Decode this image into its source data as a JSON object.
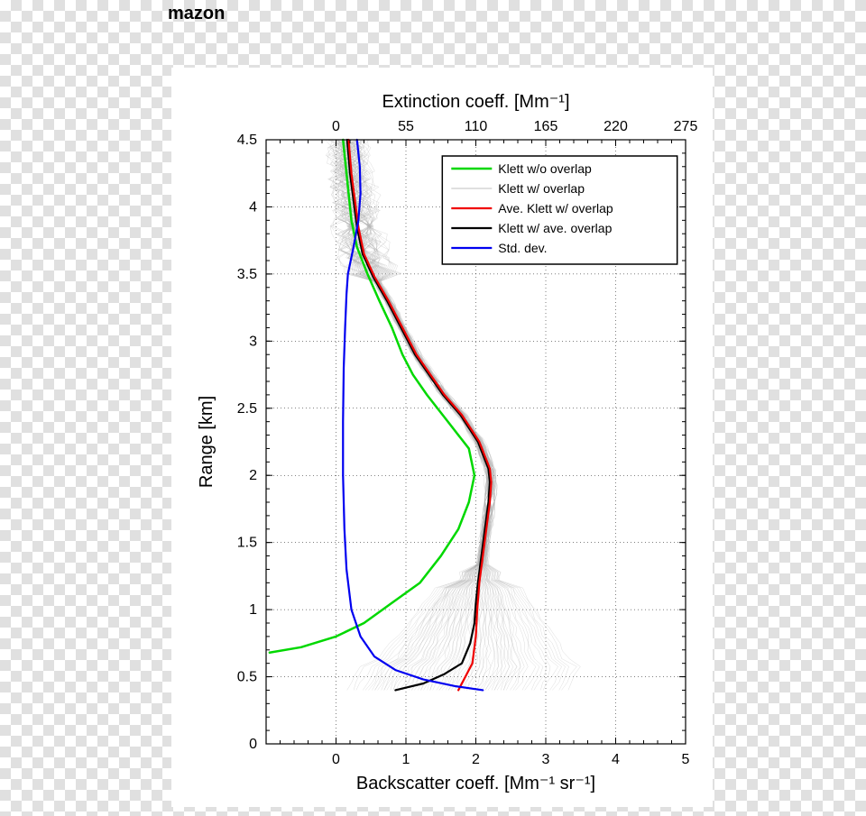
{
  "header_text": "mazon",
  "header_fontsize": 20,
  "chart": {
    "type": "line",
    "y_axis": {
      "label": "Range [km]",
      "lim": [
        0,
        4.5
      ],
      "major_ticks": [
        0,
        0.5,
        1,
        1.5,
        2,
        2.5,
        3,
        3.5,
        4,
        4.5
      ],
      "minor_step": 0.1
    },
    "x_bottom": {
      "label": "Backscatter coeff. [Mm⁻¹ sr⁻¹]",
      "lim": [
        -1,
        5
      ],
      "major_ticks": [
        0,
        1,
        2,
        3,
        4,
        5
      ],
      "minor_step": 0.2
    },
    "x_top": {
      "label": "Extinction coeff. [Mm⁻¹]",
      "lim": [
        -55,
        275
      ],
      "major_ticks": [
        0,
        55,
        110,
        165,
        220,
        275
      ]
    },
    "plot_bg": "#ffffff",
    "grid_color": "#000000",
    "series": {
      "green": {
        "color": "#00d800",
        "width": 2.5,
        "pts": [
          [
            -0.95,
            0.68
          ],
          [
            -0.5,
            0.72
          ],
          [
            0.0,
            0.8
          ],
          [
            0.4,
            0.9
          ],
          [
            0.8,
            1.05
          ],
          [
            1.2,
            1.2
          ],
          [
            1.5,
            1.4
          ],
          [
            1.75,
            1.6
          ],
          [
            1.9,
            1.8
          ],
          [
            1.98,
            2.0
          ],
          [
            1.9,
            2.2
          ],
          [
            1.6,
            2.4
          ],
          [
            1.3,
            2.6
          ],
          [
            1.1,
            2.75
          ],
          [
            0.95,
            2.9
          ],
          [
            0.8,
            3.1
          ],
          [
            0.62,
            3.3
          ],
          [
            0.45,
            3.5
          ],
          [
            0.3,
            3.7
          ],
          [
            0.22,
            3.9
          ],
          [
            0.18,
            4.1
          ],
          [
            0.14,
            4.3
          ],
          [
            0.1,
            4.5
          ]
        ]
      },
      "red": {
        "color": "#f00000",
        "width": 2.2,
        "pts": [
          [
            1.75,
            0.4
          ],
          [
            1.85,
            0.5
          ],
          [
            1.95,
            0.6
          ],
          [
            2.0,
            0.8
          ],
          [
            2.02,
            1.0
          ],
          [
            2.05,
            1.2
          ],
          [
            2.1,
            1.4
          ],
          [
            2.15,
            1.6
          ],
          [
            2.2,
            1.8
          ],
          [
            2.22,
            1.95
          ],
          [
            2.2,
            2.05
          ],
          [
            2.05,
            2.25
          ],
          [
            1.8,
            2.45
          ],
          [
            1.55,
            2.6
          ],
          [
            1.35,
            2.75
          ],
          [
            1.15,
            2.9
          ],
          [
            0.95,
            3.1
          ],
          [
            0.75,
            3.3
          ],
          [
            0.55,
            3.48
          ],
          [
            0.4,
            3.65
          ],
          [
            0.32,
            3.85
          ],
          [
            0.27,
            4.05
          ],
          [
            0.22,
            4.25
          ],
          [
            0.18,
            4.5
          ]
        ]
      },
      "black": {
        "color": "#000000",
        "width": 2.2,
        "pts": [
          [
            0.85,
            0.4
          ],
          [
            1.25,
            0.45
          ],
          [
            1.55,
            0.52
          ],
          [
            1.8,
            0.6
          ],
          [
            1.92,
            0.75
          ],
          [
            1.98,
            0.9
          ],
          [
            2.0,
            1.05
          ],
          [
            2.03,
            1.2
          ],
          [
            2.08,
            1.4
          ],
          [
            2.13,
            1.6
          ],
          [
            2.18,
            1.8
          ],
          [
            2.2,
            1.95
          ],
          [
            2.18,
            2.05
          ],
          [
            2.03,
            2.25
          ],
          [
            1.78,
            2.45
          ],
          [
            1.53,
            2.6
          ],
          [
            1.33,
            2.75
          ],
          [
            1.13,
            2.9
          ],
          [
            0.93,
            3.1
          ],
          [
            0.73,
            3.3
          ],
          [
            0.53,
            3.48
          ],
          [
            0.38,
            3.65
          ],
          [
            0.3,
            3.85
          ],
          [
            0.25,
            4.05
          ],
          [
            0.2,
            4.25
          ],
          [
            0.16,
            4.5
          ]
        ]
      },
      "blue": {
        "color": "#0000f0",
        "width": 2.2,
        "pts": [
          [
            2.1,
            0.4
          ],
          [
            1.7,
            0.43
          ],
          [
            1.25,
            0.48
          ],
          [
            0.85,
            0.55
          ],
          [
            0.55,
            0.65
          ],
          [
            0.35,
            0.8
          ],
          [
            0.22,
            1.0
          ],
          [
            0.15,
            1.3
          ],
          [
            0.12,
            1.6
          ],
          [
            0.1,
            2.0
          ],
          [
            0.1,
            2.4
          ],
          [
            0.11,
            2.8
          ],
          [
            0.13,
            3.1
          ],
          [
            0.15,
            3.35
          ],
          [
            0.17,
            3.5
          ],
          [
            0.25,
            3.7
          ],
          [
            0.32,
            3.9
          ],
          [
            0.35,
            4.1
          ],
          [
            0.34,
            4.3
          ],
          [
            0.3,
            4.5
          ]
        ]
      },
      "grey_ensemble": {
        "color": "#aaaaaa",
        "width": 0.35,
        "count": 80
      }
    },
    "legend": {
      "border_color": "#000000",
      "bg": "#ffffff",
      "items": [
        {
          "label": "Klett w/o overlap",
          "color": "#00d800",
          "width": 2.5
        },
        {
          "label": "Klett w/ overlap",
          "color": "#aaaaaa",
          "width": 0.8
        },
        {
          "label": "Ave. Klett w/ overlap",
          "color": "#f00000",
          "width": 2.2
        },
        {
          "label": "Klett w/ ave. overlap",
          "color": "#000000",
          "width": 2.2
        },
        {
          "label": "Std. dev.",
          "color": "#0000f0",
          "width": 2.2
        }
      ]
    },
    "label_fontsize": 20,
    "tick_fontsize": 16
  }
}
